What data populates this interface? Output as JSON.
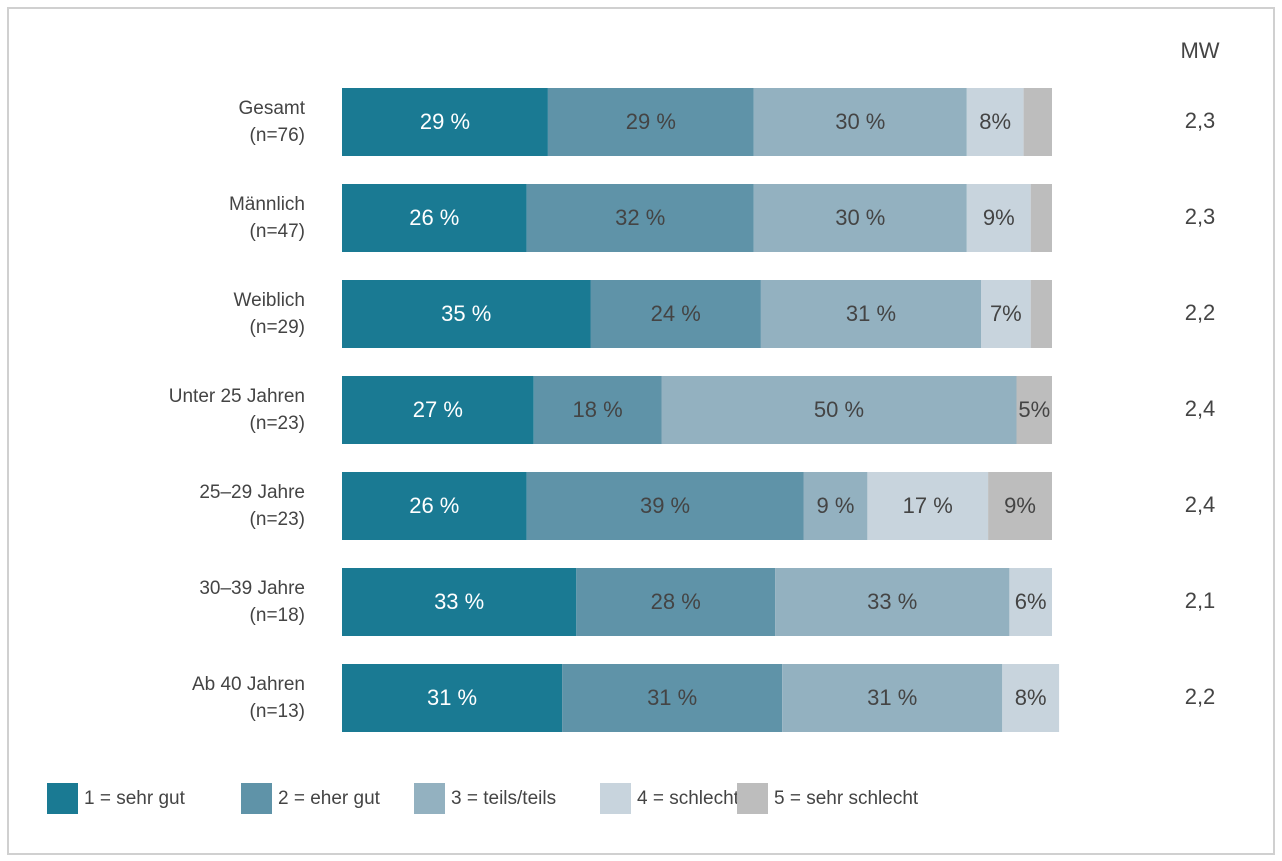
{
  "chart_data": {
    "type": "stacked-barh",
    "categories": [
      "Gesamt",
      "Männlich",
      "Weiblich",
      "Unter 25 Jahren",
      "25–29 Jahre",
      "30–39 Jahre",
      "Ab 40 Jahren"
    ],
    "n_labels": [
      "(n=76)",
      "(n=47)",
      "(n=29)",
      "(n=23)",
      "(n=23)",
      "(n=18)",
      "(n=13)"
    ],
    "xlim": [
      0,
      100
    ],
    "series": [
      {
        "name": "1 = sehr gut",
        "color": "#1a7a93",
        "values": [
          29,
          26,
          35,
          27,
          26,
          33,
          31
        ],
        "value_labels": [
          "29 %",
          "26 %",
          "35 %",
          "27 %",
          "26 %",
          "33 %",
          "31 %"
        ]
      },
      {
        "name": "2 = eher gut",
        "color": "#5f93a8",
        "values": [
          29,
          32,
          24,
          18,
          39,
          28,
          31
        ],
        "value_labels": [
          "29 %",
          "32 %",
          "24 %",
          "18 %",
          "39 %",
          "28 %",
          "31 %"
        ]
      },
      {
        "name": "3 = teils/teils",
        "color": "#93b1c0",
        "values": [
          30,
          30,
          31,
          50,
          9,
          33,
          31
        ],
        "value_labels": [
          "30 %",
          "30 %",
          "31 %",
          "50 %",
          "9 %",
          "33 %",
          "31 %"
        ]
      },
      {
        "name": "4 = schlecht",
        "color": "#c8d4dd",
        "values": [
          8,
          9,
          7,
          null,
          17,
          6,
          8
        ],
        "value_labels": [
          "8%",
          "9%",
          "7%",
          null,
          "17 %",
          "6%",
          "8%"
        ]
      },
      {
        "name": "5 = sehr schlecht",
        "color": "#bdbdbd",
        "values": [
          4,
          3,
          3,
          5,
          9,
          null,
          null
        ],
        "value_labels": [
          null,
          null,
          null,
          "5%",
          "9%",
          null,
          null
        ]
      }
    ],
    "mw": {
      "label": "MW",
      "values": [
        2.3,
        2.3,
        2.2,
        2.4,
        2.4,
        2.1,
        2.2
      ],
      "value_labels": [
        "2,3",
        "2,3",
        "2,2",
        "2,4",
        "2,4",
        "2,1",
        "2,2"
      ]
    }
  }
}
